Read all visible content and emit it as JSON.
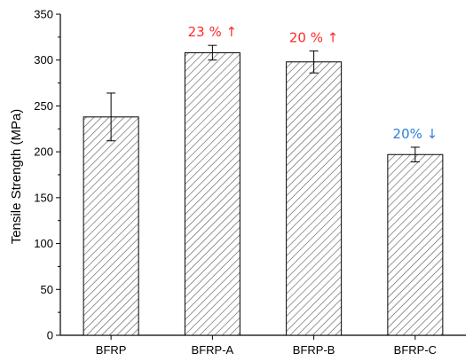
{
  "chart_data": {
    "type": "bar",
    "title": "",
    "xlabel": "",
    "ylabel": "Tensile Strength (MPa)",
    "ylim": [
      0,
      350
    ],
    "yticks": [
      0,
      50,
      100,
      150,
      200,
      250,
      300,
      350
    ],
    "categories": [
      "BFRP",
      "BFRP-A",
      "BFRP-B",
      "BFRP-C"
    ],
    "values": [
      238,
      308,
      298,
      197
    ],
    "errors": [
      26,
      8,
      12,
      8
    ],
    "bar_fill": "hatched",
    "annotations": [
      {
        "category": "BFRP-A",
        "text": "23 % ↑",
        "color": "#ff2a2a"
      },
      {
        "category": "BFRP-B",
        "text": "20 % ↑",
        "color": "#ff2a2a"
      },
      {
        "category": "BFRP-C",
        "text": "20% ↓",
        "color": "#2e7fd6"
      }
    ],
    "grid": false
  }
}
